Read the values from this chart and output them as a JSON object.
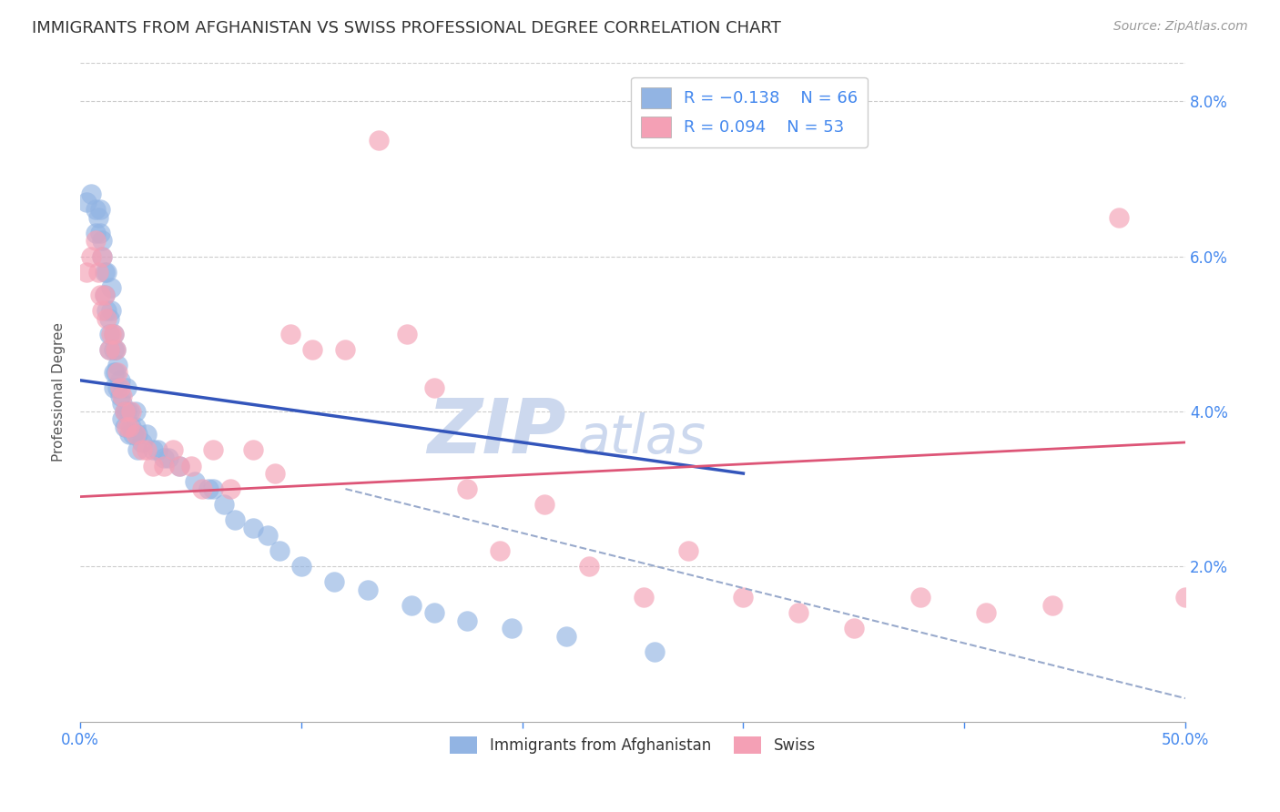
{
  "title": "IMMIGRANTS FROM AFGHANISTAN VS SWISS PROFESSIONAL DEGREE CORRELATION CHART",
  "source": "Source: ZipAtlas.com",
  "ylabel": "Professional Degree",
  "xlim": [
    0.0,
    0.5
  ],
  "ylim": [
    0.0,
    0.085
  ],
  "color_blue": "#92b4e3",
  "color_pink": "#f4a0b5",
  "trendline_blue_color": "#3355bb",
  "trendline_pink_color": "#dd5577",
  "trendline_dashed_color": "#99aacc",
  "watermark_zip": "ZIP",
  "watermark_atlas": "atlas",
  "watermark_color": "#ccd8ee",
  "blue_scatter_x": [
    0.003,
    0.005,
    0.007,
    0.007,
    0.008,
    0.009,
    0.009,
    0.01,
    0.01,
    0.011,
    0.011,
    0.012,
    0.012,
    0.013,
    0.013,
    0.013,
    0.014,
    0.014,
    0.015,
    0.015,
    0.015,
    0.015,
    0.016,
    0.016,
    0.017,
    0.017,
    0.018,
    0.018,
    0.019,
    0.019,
    0.02,
    0.02,
    0.021,
    0.021,
    0.022,
    0.022,
    0.023,
    0.024,
    0.025,
    0.025,
    0.026,
    0.026,
    0.028,
    0.03,
    0.033,
    0.035,
    0.038,
    0.04,
    0.045,
    0.052,
    0.058,
    0.06,
    0.065,
    0.07,
    0.078,
    0.085,
    0.09,
    0.1,
    0.115,
    0.13,
    0.15,
    0.16,
    0.175,
    0.195,
    0.22,
    0.26
  ],
  "blue_scatter_y": [
    0.067,
    0.068,
    0.066,
    0.063,
    0.065,
    0.066,
    0.063,
    0.062,
    0.06,
    0.058,
    0.055,
    0.053,
    0.058,
    0.052,
    0.05,
    0.048,
    0.056,
    0.053,
    0.05,
    0.048,
    0.045,
    0.043,
    0.048,
    0.045,
    0.046,
    0.043,
    0.044,
    0.042,
    0.041,
    0.039,
    0.04,
    0.038,
    0.04,
    0.043,
    0.04,
    0.037,
    0.038,
    0.037,
    0.04,
    0.038,
    0.037,
    0.035,
    0.036,
    0.037,
    0.035,
    0.035,
    0.034,
    0.034,
    0.033,
    0.031,
    0.03,
    0.03,
    0.028,
    0.026,
    0.025,
    0.024,
    0.022,
    0.02,
    0.018,
    0.017,
    0.015,
    0.014,
    0.013,
    0.012,
    0.011,
    0.009
  ],
  "pink_scatter_x": [
    0.003,
    0.005,
    0.007,
    0.008,
    0.009,
    0.01,
    0.01,
    0.011,
    0.012,
    0.013,
    0.014,
    0.015,
    0.016,
    0.017,
    0.018,
    0.019,
    0.02,
    0.021,
    0.022,
    0.023,
    0.025,
    0.028,
    0.03,
    0.033,
    0.038,
    0.042,
    0.045,
    0.05,
    0.055,
    0.06,
    0.068,
    0.078,
    0.088,
    0.095,
    0.105,
    0.12,
    0.135,
    0.148,
    0.16,
    0.175,
    0.19,
    0.21,
    0.23,
    0.255,
    0.275,
    0.3,
    0.325,
    0.35,
    0.38,
    0.41,
    0.44,
    0.47,
    0.5
  ],
  "pink_scatter_y": [
    0.058,
    0.06,
    0.062,
    0.058,
    0.055,
    0.06,
    0.053,
    0.055,
    0.052,
    0.048,
    0.05,
    0.05,
    0.048,
    0.045,
    0.043,
    0.042,
    0.04,
    0.038,
    0.038,
    0.04,
    0.037,
    0.035,
    0.035,
    0.033,
    0.033,
    0.035,
    0.033,
    0.033,
    0.03,
    0.035,
    0.03,
    0.035,
    0.032,
    0.05,
    0.048,
    0.048,
    0.075,
    0.05,
    0.043,
    0.03,
    0.022,
    0.028,
    0.02,
    0.016,
    0.022,
    0.016,
    0.014,
    0.012,
    0.016,
    0.014,
    0.015,
    0.065,
    0.016
  ],
  "blue_trend_x": [
    0.0,
    0.3
  ],
  "blue_trend_y": [
    0.044,
    0.032
  ],
  "pink_trend_x": [
    0.0,
    0.5
  ],
  "pink_trend_y": [
    0.029,
    0.036
  ],
  "dashed_trend_x": [
    0.12,
    0.5
  ],
  "dashed_trend_y": [
    0.03,
    0.003
  ],
  "grid_color": "#cccccc",
  "title_fontsize": 13,
  "axis_label_fontsize": 11,
  "tick_label_color": "#4488ee",
  "background_color": "#ffffff",
  "legend_r1_text": "R = −0.138",
  "legend_r1_n": "N = 66",
  "legend_r2_text": "R = 0.094",
  "legend_r2_n": "N = 53"
}
